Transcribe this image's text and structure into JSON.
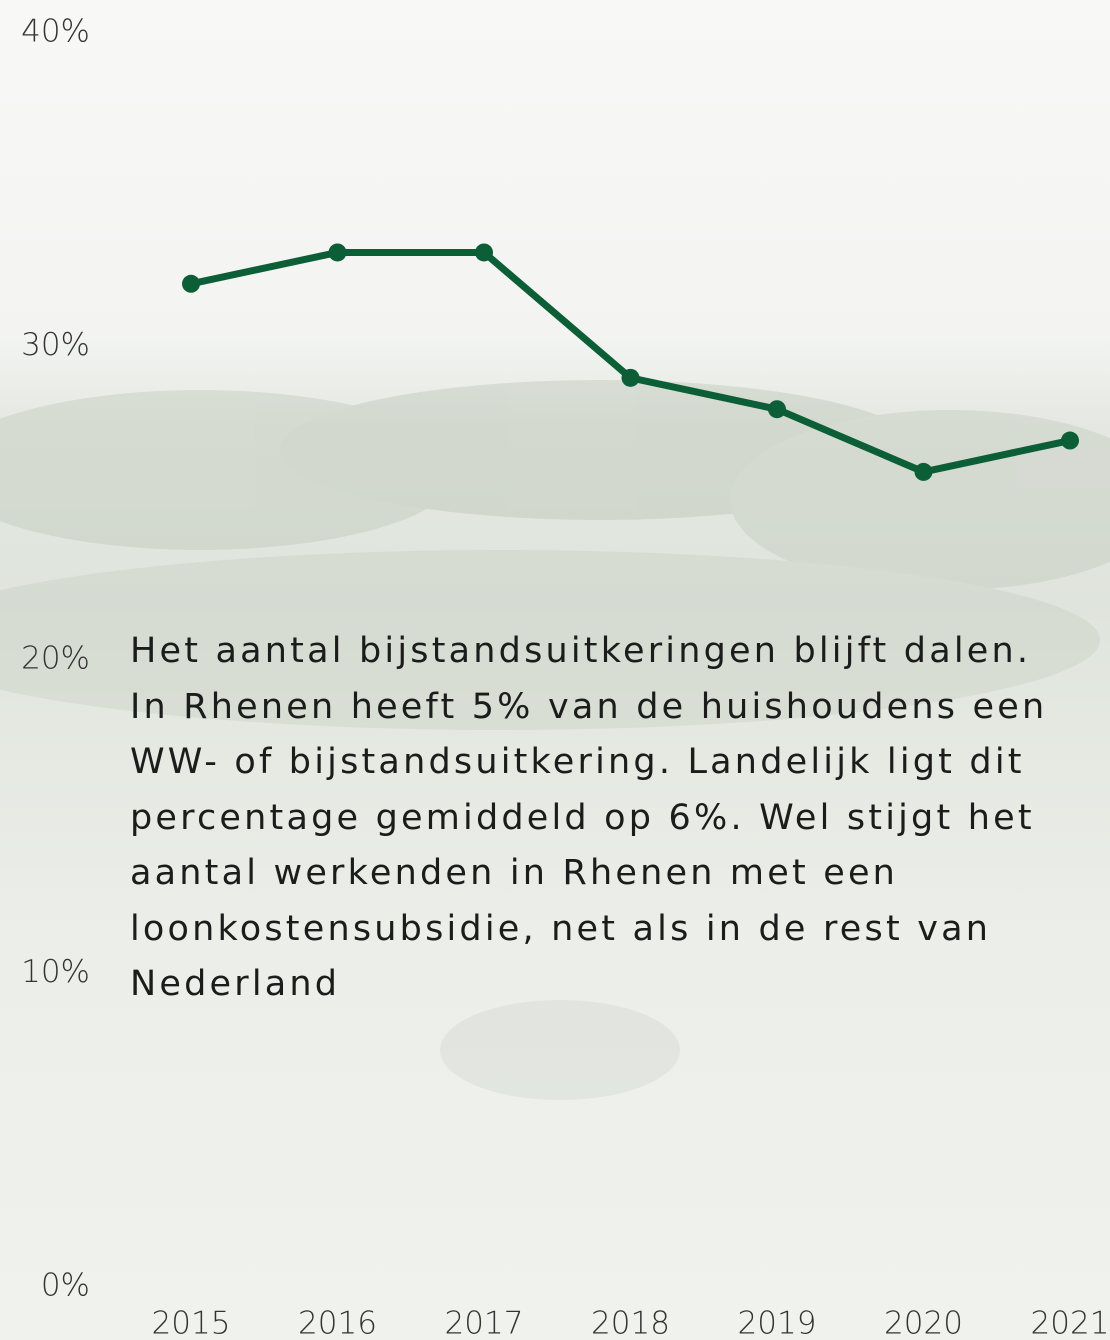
{
  "chart_data": {
    "type": "line",
    "categories": [
      "2015",
      "2016",
      "2017",
      "2018",
      "2019",
      "2020",
      "2021"
    ],
    "series": [
      {
        "color": "#0b5e36",
        "values": [
          32,
          33,
          33,
          29,
          28,
          26,
          27
        ]
      }
    ],
    "ylim": [
      0,
      40
    ],
    "yticks": [
      {
        "value": 0,
        "label": "0%"
      },
      {
        "value": 10,
        "label": "10%"
      },
      {
        "value": 20,
        "label": "20%"
      },
      {
        "value": 30,
        "label": "30%"
      },
      {
        "value": 40,
        "label": "40%"
      }
    ],
    "annotation": "Het aantal bijstandsuitkeringen blijft dalen. In Rhenen heeft 5% van de huishoudens een WW- of bijstandsuitkering. Landelijk ligt dit percentage gemiddeld op 6%. Wel stijgt het aantal werkenden in Rhenen met een loonkostensubsidie, net als in de rest van Nederland"
  }
}
